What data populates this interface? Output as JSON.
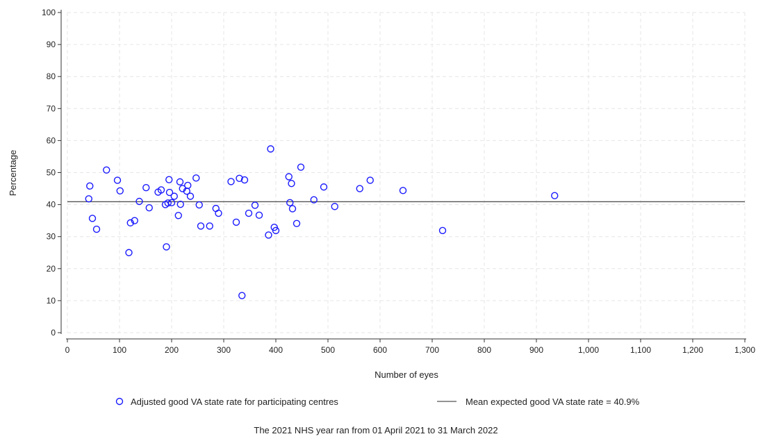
{
  "chart_data": {
    "type": "scatter",
    "xlabel": "Number of eyes",
    "ylabel": "Percentage",
    "xlim": [
      0,
      1300
    ],
    "ylim": [
      0,
      100
    ],
    "x_ticks": [
      0,
      100,
      200,
      300,
      400,
      500,
      600,
      700,
      800,
      900,
      1000,
      1100,
      1200,
      1300
    ],
    "x_tick_labels": [
      "0",
      "100",
      "200",
      "300",
      "400",
      "500",
      "600",
      "700",
      "800",
      "900",
      "1,000",
      "1,100",
      "1,200",
      "1,300"
    ],
    "y_ticks": [
      0,
      10,
      20,
      30,
      40,
      50,
      60,
      70,
      80,
      90,
      100
    ],
    "y_tick_labels": [
      "0",
      "10",
      "20",
      "30",
      "40",
      "50",
      "60",
      "70",
      "80",
      "90",
      "100"
    ],
    "grid": true,
    "colors": {
      "points": "#1a1aff",
      "mean_line": "#555555",
      "grid": "#e6e6e6"
    },
    "series": [
      {
        "name": "Adjusted good VA state rate for participating centres",
        "marker": "hollow-circle",
        "points": [
          [
            41,
            41.8
          ],
          [
            43,
            45.8
          ],
          [
            48,
            35.7
          ],
          [
            56,
            32.3
          ],
          [
            75,
            50.8
          ],
          [
            96,
            47.6
          ],
          [
            101,
            44.3
          ],
          [
            118,
            25.0
          ],
          [
            121,
            34.3
          ],
          [
            129,
            35.0
          ],
          [
            138,
            41.0
          ],
          [
            151,
            45.3
          ],
          [
            157,
            39.0
          ],
          [
            174,
            43.9
          ],
          [
            180,
            44.6
          ],
          [
            188,
            40.0
          ],
          [
            190,
            26.8
          ],
          [
            193,
            40.5
          ],
          [
            195,
            47.8
          ],
          [
            196,
            43.8
          ],
          [
            200,
            40.6
          ],
          [
            205,
            42.6
          ],
          [
            213,
            36.6
          ],
          [
            216,
            47.1
          ],
          [
            217,
            40.1
          ],
          [
            221,
            45.0
          ],
          [
            229,
            44.2
          ],
          [
            231,
            46.0
          ],
          [
            236,
            42.6
          ],
          [
            247,
            48.3
          ],
          [
            253,
            39.9
          ],
          [
            256,
            33.3
          ],
          [
            273,
            33.3
          ],
          [
            285,
            38.8
          ],
          [
            290,
            37.3
          ],
          [
            314,
            47.2
          ],
          [
            324,
            34.5
          ],
          [
            330,
            48.2
          ],
          [
            335,
            11.6
          ],
          [
            340,
            47.7
          ],
          [
            348,
            37.3
          ],
          [
            360,
            39.8
          ],
          [
            368,
            36.7
          ],
          [
            386,
            30.5
          ],
          [
            390,
            57.4
          ],
          [
            397,
            32.9
          ],
          [
            400,
            31.9
          ],
          [
            425,
            48.7
          ],
          [
            427,
            40.6
          ],
          [
            430,
            46.6
          ],
          [
            432,
            38.7
          ],
          [
            440,
            34.1
          ],
          [
            448,
            51.7
          ],
          [
            473,
            41.5
          ],
          [
            492,
            45.5
          ],
          [
            513,
            39.4
          ],
          [
            561,
            45.0
          ],
          [
            581,
            47.6
          ],
          [
            644,
            44.4
          ],
          [
            720,
            31.9
          ],
          [
            935,
            42.8
          ]
        ]
      },
      {
        "name": "Mean expected good VA state rate = 40.9%",
        "type": "hline",
        "value": 40.9
      }
    ],
    "legend": {
      "position": "bottom",
      "items": [
        "Adjusted good VA state rate for participating centres",
        "Mean expected good VA state rate = 40.9%"
      ]
    },
    "footnote": "The 2021 NHS year ran from 01 April 2021 to 31 March 2022"
  }
}
